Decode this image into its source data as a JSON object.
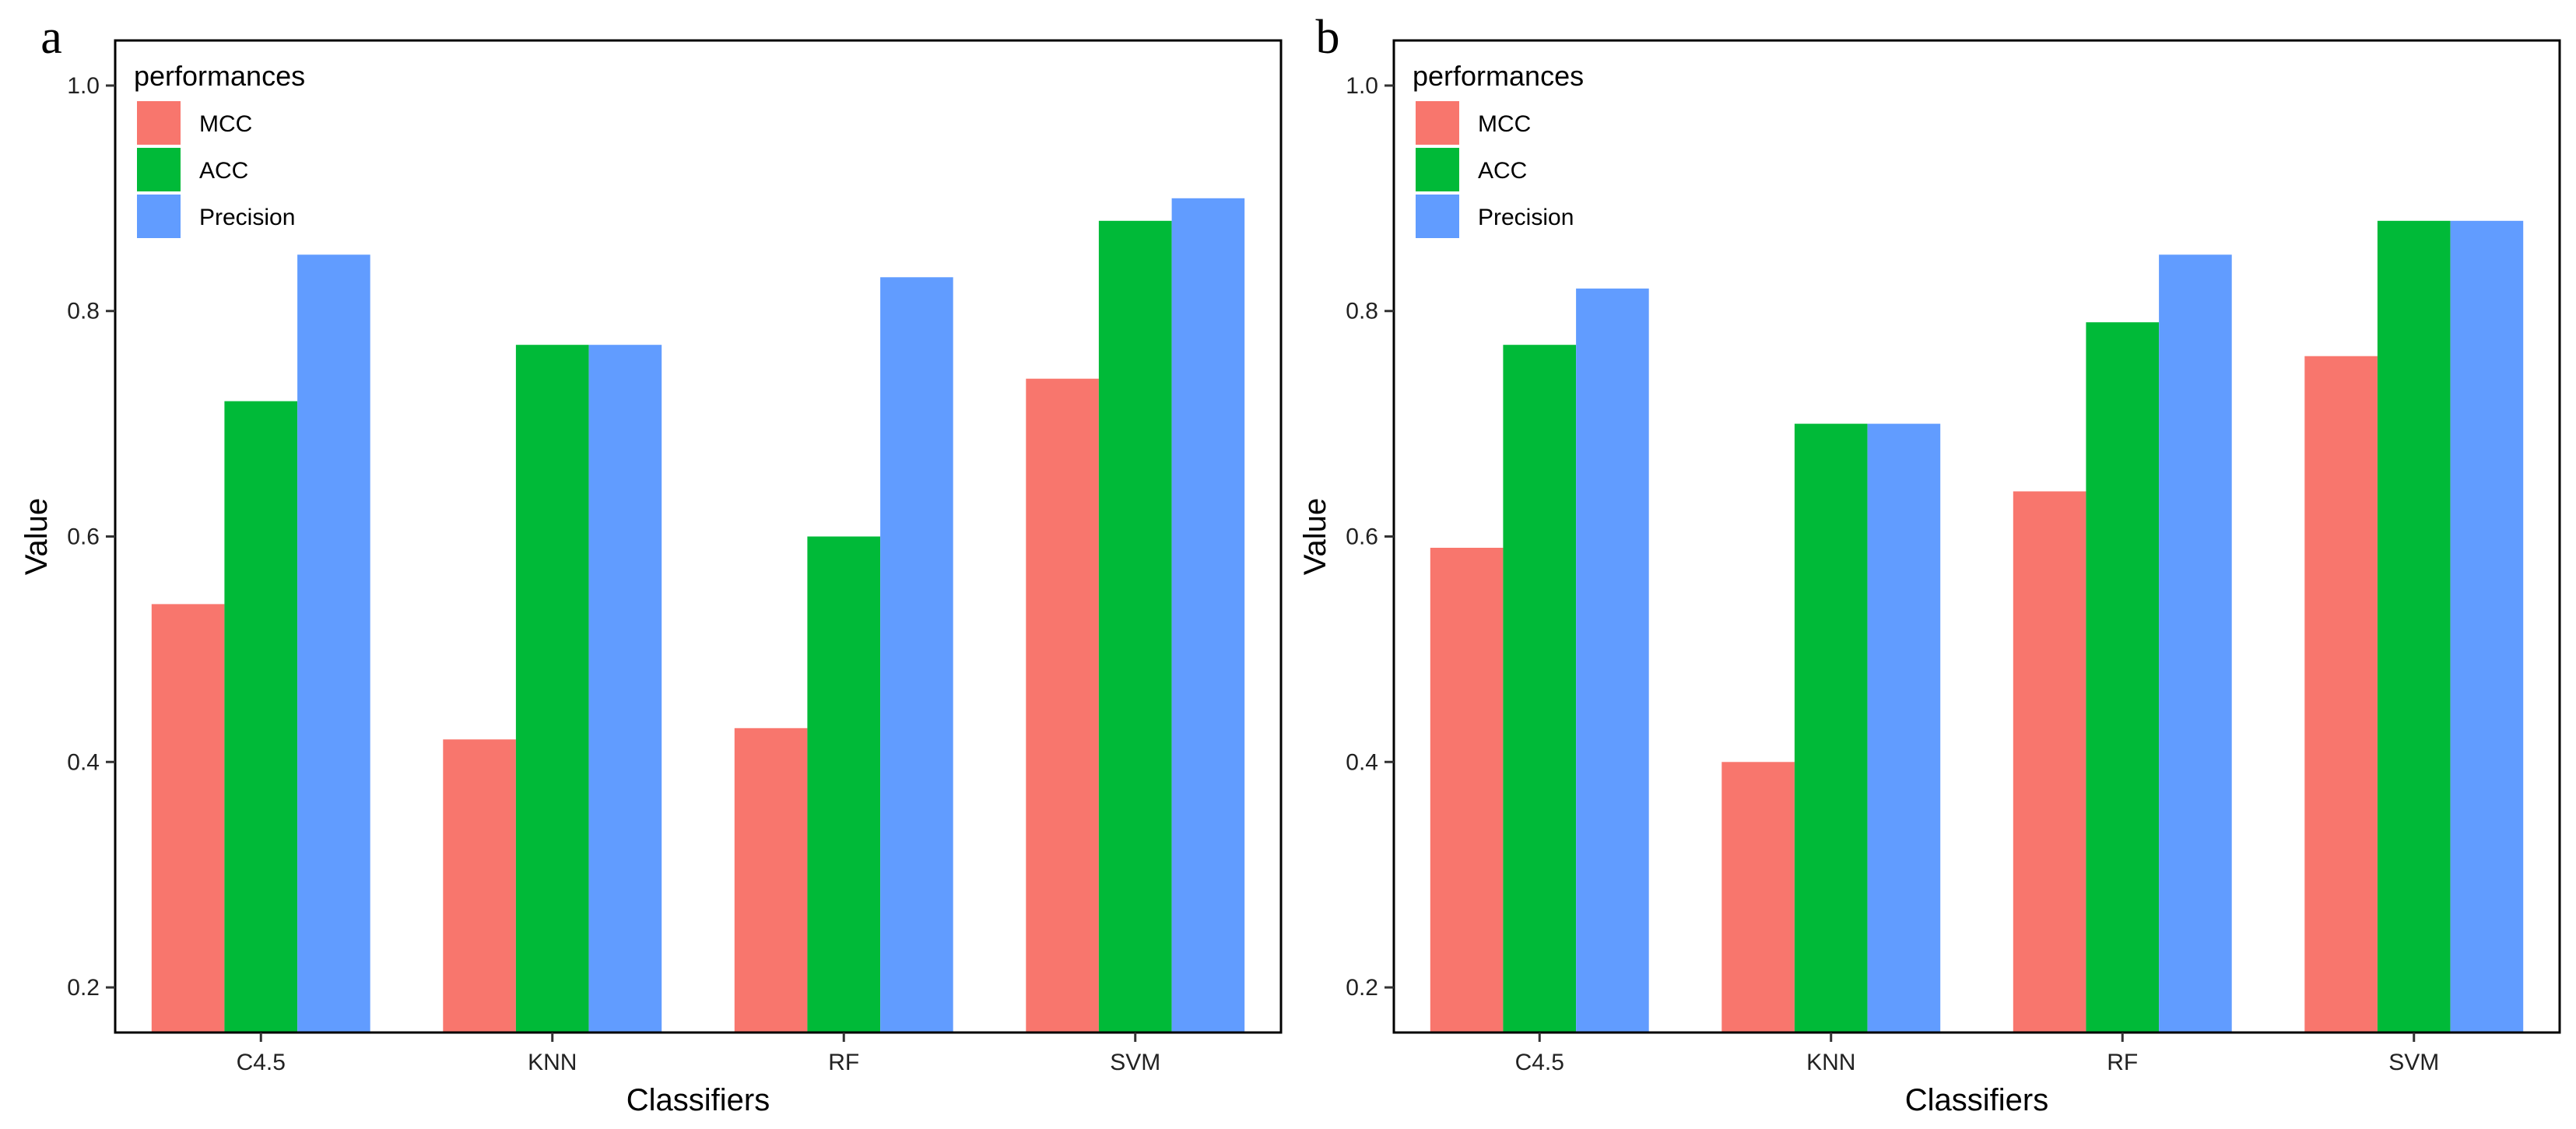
{
  "chart_data": [
    {
      "panel_label": "a",
      "type": "bar",
      "title": "",
      "xlabel": "Classifiers",
      "ylabel": "Value",
      "ylim": [
        0.16,
        1.04
      ],
      "yticks": [
        0.2,
        0.4,
        0.6,
        0.8,
        1.0
      ],
      "ytick_labels": [
        "0.2",
        "0.4",
        "0.6",
        "0.8",
        "1.0"
      ],
      "grid": false,
      "legend_title": "performances",
      "legend_position": "top-left",
      "categories": [
        "C4.5",
        "KNN",
        "RF",
        "SVM"
      ],
      "series": [
        {
          "name": "MCC",
          "color": "#F8766D",
          "values": [
            0.54,
            0.42,
            0.43,
            0.74
          ]
        },
        {
          "name": "ACC",
          "color": "#00BA38",
          "values": [
            0.72,
            0.77,
            0.6,
            0.88
          ]
        },
        {
          "name": "Precision",
          "color": "#619CFF",
          "values": [
            0.85,
            0.77,
            0.83,
            0.9
          ]
        }
      ]
    },
    {
      "panel_label": "b",
      "type": "bar",
      "title": "",
      "xlabel": "Classifiers",
      "ylabel": "Value",
      "ylim": [
        0.16,
        1.04
      ],
      "yticks": [
        0.2,
        0.4,
        0.6,
        0.8,
        1.0
      ],
      "ytick_labels": [
        "0.2",
        "0.4",
        "0.6",
        "0.8",
        "1.0"
      ],
      "grid": false,
      "legend_title": "performances",
      "legend_position": "top-left",
      "categories": [
        "C4.5",
        "KNN",
        "RF",
        "SVM"
      ],
      "series": [
        {
          "name": "MCC",
          "color": "#F8766D",
          "values": [
            0.59,
            0.4,
            0.64,
            0.76
          ]
        },
        {
          "name": "ACC",
          "color": "#00BA38",
          "values": [
            0.77,
            0.7,
            0.79,
            0.88
          ]
        },
        {
          "name": "Precision",
          "color": "#619CFF",
          "values": [
            0.82,
            0.7,
            0.85,
            0.88
          ]
        }
      ]
    }
  ]
}
